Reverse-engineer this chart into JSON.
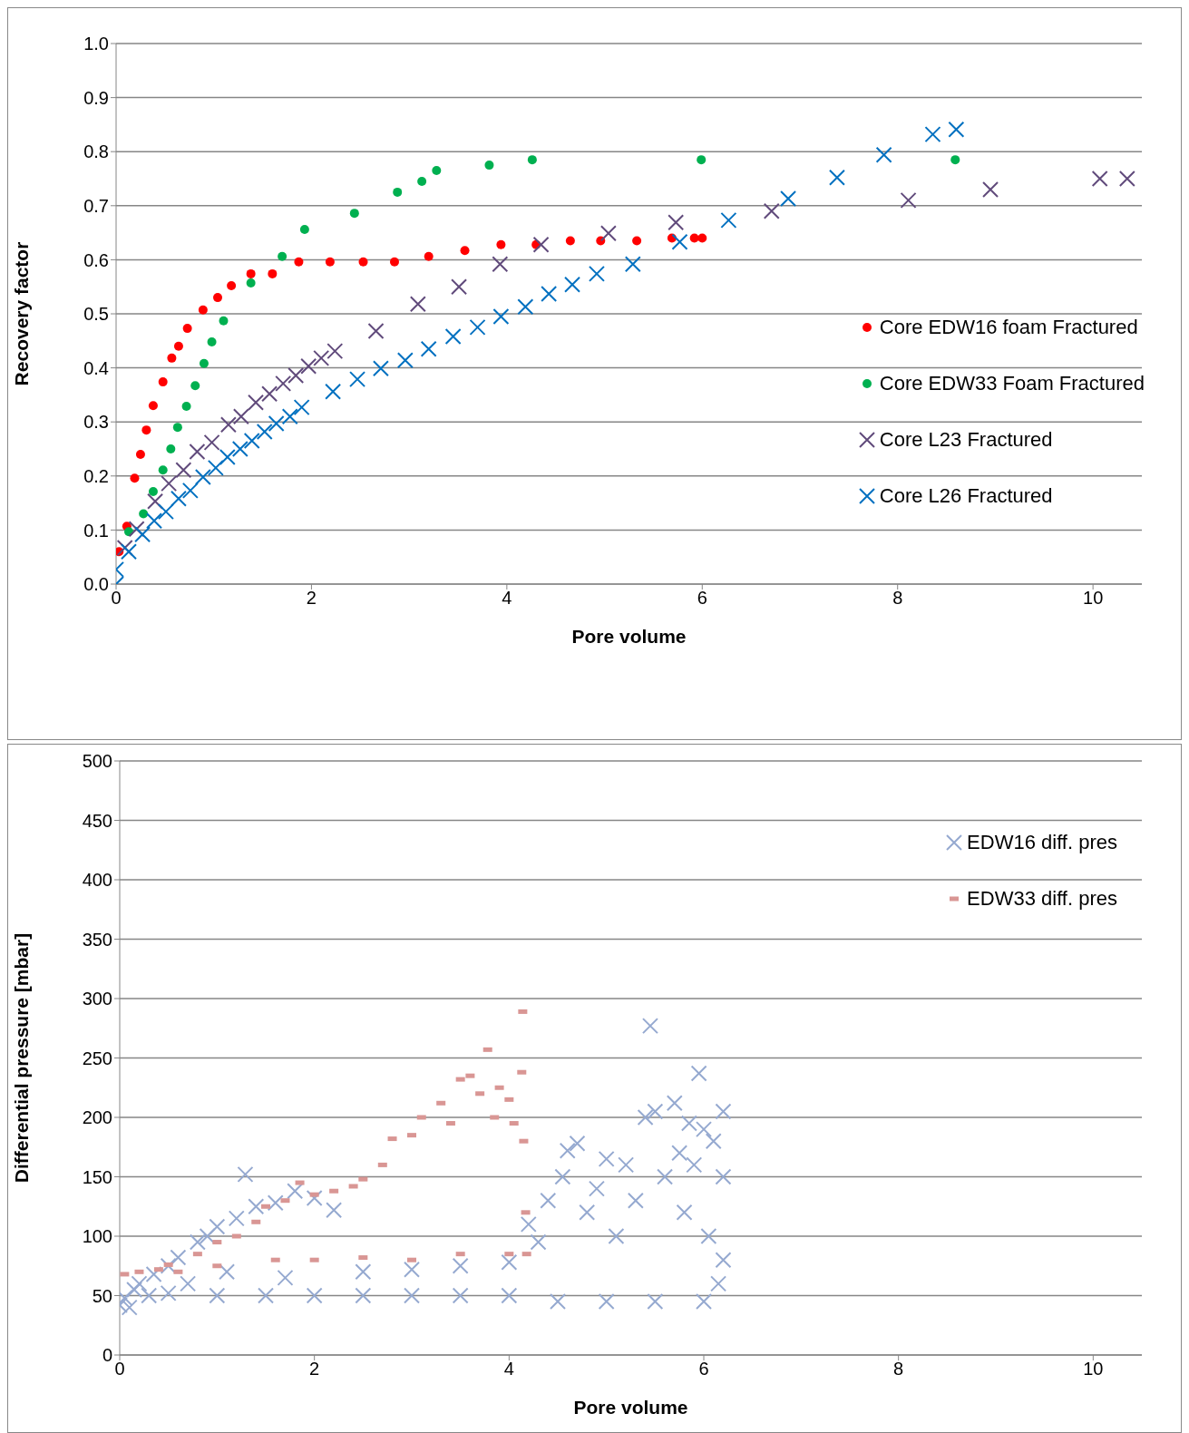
{
  "chart_data": [
    {
      "type": "scatter",
      "xlabel": "Pore volume",
      "ylabel": "Recovery factor",
      "xlim": [
        0,
        10.5
      ],
      "xticks": [
        0,
        2,
        4,
        6,
        8,
        10
      ],
      "ylim": [
        0,
        1
      ],
      "yticks": [
        {
          "value": 0,
          "label": "0.0"
        },
        0.1,
        0.2,
        0.3,
        0.4,
        0.5,
        0.6,
        0.7,
        0.8,
        0.9,
        {
          "value": 1,
          "label": "1.0"
        }
      ],
      "grid": "y",
      "legend": "right",
      "series": [
        {
          "name": "Core EDW16 foam Fractured",
          "color": "#ff0000",
          "marker": "circle",
          "x": [
            0.03,
            0.11,
            0.19,
            0.25,
            0.31,
            0.38,
            0.48,
            0.57,
            0.64,
            0.73,
            0.89,
            1.04,
            1.18,
            1.38,
            1.6,
            1.87,
            2.19,
            2.53,
            2.85,
            3.2,
            3.57,
            3.94,
            4.3,
            4.65,
            4.96,
            5.33,
            5.69,
            5.92,
            6.0
          ],
          "values": [
            0.06,
            0.107,
            0.196,
            0.24,
            0.285,
            0.33,
            0.374,
            0.418,
            0.44,
            0.473,
            0.507,
            0.53,
            0.552,
            0.574,
            0.574,
            0.596,
            0.596,
            0.596,
            0.596,
            0.606,
            0.617,
            0.628,
            0.628,
            0.635,
            0.635,
            0.635,
            0.64,
            0.64,
            0.64
          ]
        },
        {
          "name": "Core EDW33 Foam Fractured",
          "color": "#00b050",
          "marker": "circle",
          "x": [
            0.13,
            0.28,
            0.38,
            0.48,
            0.56,
            0.63,
            0.72,
            0.81,
            0.9,
            0.98,
            1.1,
            1.38,
            1.7,
            1.93,
            2.44,
            2.88,
            3.13,
            3.28,
            3.82,
            4.26,
            5.99,
            8.59
          ],
          "values": [
            0.097,
            0.13,
            0.171,
            0.211,
            0.25,
            0.29,
            0.329,
            0.367,
            0.408,
            0.448,
            0.487,
            0.557,
            0.606,
            0.656,
            0.686,
            0.725,
            0.745,
            0.765,
            0.775,
            0.785,
            0.785,
            0.785
          ]
        },
        {
          "name": "Core L23 Fractured",
          "color": "#604a7b",
          "marker": "cross",
          "x": [
            0.09,
            0.21,
            0.4,
            0.54,
            0.69,
            0.83,
            0.98,
            1.15,
            1.28,
            1.43,
            1.57,
            1.71,
            1.84,
            1.97,
            2.1,
            2.24,
            2.66,
            3.09,
            3.51,
            3.93,
            4.35,
            5.04,
            5.73,
            6.71,
            8.11,
            8.95,
            10.07,
            10.35
          ],
          "values": [
            0.067,
            0.102,
            0.153,
            0.186,
            0.211,
            0.245,
            0.262,
            0.295,
            0.31,
            0.336,
            0.352,
            0.371,
            0.386,
            0.403,
            0.418,
            0.431,
            0.468,
            0.518,
            0.55,
            0.592,
            0.628,
            0.649,
            0.669,
            0.69,
            0.71,
            0.73,
            0.75,
            0.75
          ]
        },
        {
          "name": "Core L26 Fractured",
          "color": "#0070c0",
          "marker": "cross",
          "x": [
            0,
            0,
            0.13,
            0.27,
            0.39,
            0.51,
            0.64,
            0.76,
            0.89,
            1.02,
            1.14,
            1.27,
            1.39,
            1.52,
            1.64,
            1.78,
            1.9,
            2.22,
            2.47,
            2.71,
            2.96,
            3.2,
            3.45,
            3.7,
            3.94,
            4.19,
            4.43,
            4.67,
            4.92,
            5.29,
            5.77,
            6.27,
            6.88,
            7.38,
            7.86,
            8.36,
            8.6
          ],
          "values": [
            0,
            0.027,
            0.06,
            0.092,
            0.117,
            0.134,
            0.158,
            0.173,
            0.198,
            0.215,
            0.235,
            0.25,
            0.265,
            0.282,
            0.297,
            0.31,
            0.327,
            0.356,
            0.379,
            0.399,
            0.414,
            0.435,
            0.458,
            0.475,
            0.495,
            0.513,
            0.537,
            0.554,
            0.574,
            0.592,
            0.633,
            0.673,
            0.713,
            0.752,
            0.794,
            0.832,
            0.841
          ]
        }
      ]
    },
    {
      "type": "scatter",
      "xlabel": "Pore volume",
      "ylabel": "Differential pressure [mbar]",
      "xlim": [
        0,
        10.5
      ],
      "xticks": [
        0,
        2,
        4,
        6,
        8,
        10
      ],
      "ylim": [
        0,
        500
      ],
      "yticks": [
        0,
        50,
        100,
        150,
        200,
        250,
        300,
        350,
        400,
        450,
        500
      ],
      "grid": "y",
      "legend": "top right",
      "series": [
        {
          "name": "EDW16 diff. pres",
          "color": "#95a9d0",
          "marker": "cross",
          "x": [
            0,
            0.05,
            0.1,
            0.15,
            0.2,
            0.3,
            0.35,
            0.5,
            0.5,
            0.6,
            0.7,
            0.8,
            0.9,
            1.0,
            1.0,
            1.1,
            1.2,
            1.29,
            1.4,
            1.5,
            1.6,
            1.7,
            1.8,
            2.0,
            2.0,
            2.2,
            2.5,
            2.5,
            3.0,
            3.0,
            3.5,
            3.5,
            4.0,
            4.0,
            4.2,
            4.3,
            4.4,
            4.5,
            4.55,
            4.6,
            4.7,
            4.8,
            4.9,
            5.0,
            5.0,
            5.1,
            5.2,
            5.3,
            5.4,
            5.45,
            5.5,
            5.5,
            5.6,
            5.7,
            5.75,
            5.8,
            5.85,
            5.9,
            5.95,
            6.0,
            6.0,
            6.05,
            6.1,
            6.15,
            6.2,
            6.2,
            6.2
          ],
          "values": [
            42,
            48,
            40,
            55,
            60,
            50,
            68,
            52,
            75,
            82,
            60,
            95,
            100,
            50,
            108,
            70,
            115,
            152,
            125,
            50,
            128,
            65,
            138,
            50,
            132,
            122,
            50,
            70,
            50,
            72,
            50,
            75,
            50,
            78,
            110,
            95,
            130,
            45,
            150,
            172,
            178,
            120,
            140,
            45,
            165,
            100,
            160,
            130,
            200,
            277,
            45,
            205,
            150,
            212,
            170,
            120,
            195,
            160,
            237,
            45,
            190,
            100,
            180,
            60,
            205,
            150,
            80
          ]
        },
        {
          "name": "EDW33 diff. pres",
          "color": "#d99694",
          "marker": "square",
          "x": [
            0.05,
            0.2,
            0.4,
            0.5,
            0.6,
            0.8,
            1.0,
            1.0,
            1.2,
            1.4,
            1.5,
            1.6,
            1.7,
            1.85,
            2.0,
            2.0,
            2.2,
            2.4,
            2.5,
            2.5,
            2.7,
            2.8,
            3.0,
            3.0,
            3.1,
            3.3,
            3.4,
            3.5,
            3.5,
            3.6,
            3.7,
            3.78,
            3.85,
            3.9,
            4.0,
            4.0,
            4.05,
            4.13,
            4.14,
            4.15,
            4.17,
            4.18
          ],
          "values": [
            68,
            70,
            72,
            76,
            70,
            85,
            95,
            75,
            100,
            112,
            125,
            80,
            130,
            145,
            135,
            80,
            138,
            142,
            148,
            82,
            160,
            182,
            80,
            185,
            200,
            212,
            195,
            85,
            232,
            235,
            220,
            257,
            200,
            225,
            85,
            215,
            195,
            238,
            289,
            180,
            120,
            85
          ]
        }
      ]
    }
  ]
}
